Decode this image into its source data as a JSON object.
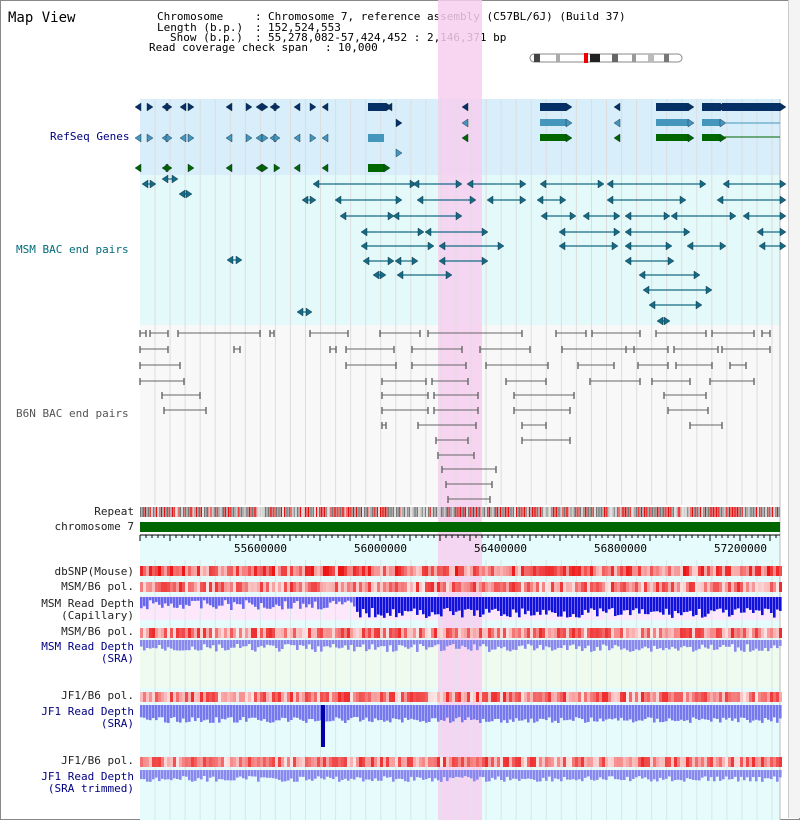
{
  "page_title": "Map View",
  "info": {
    "chromosome_key": "Chromosome",
    "chromosome_val": "Chromosome 7, reference assembly (C57BL/6J) (Build 37)",
    "length_key": "Length (b.p.)",
    "length_val": "152,524,553",
    "show_key": "Show (b.p.)",
    "show_val": "55,278,082-57,424,452 : 2,146,371 bp",
    "span_key": "Read coverage check span",
    "span_val": "10,000"
  },
  "tracks": {
    "refseq": "RefSeq Genes",
    "msm_bac": "MSM BAC end pairs",
    "b6n_bac": "B6N BAC end pairs",
    "repeat": "Repeat",
    "chromosome": "chromosome 7",
    "dbsnp": "dbSNP(Mouse)",
    "msm_b6_pol_1": "MSM/B6 pol.",
    "msm_depth_cap": "MSM Read Depth\n(Capillary)",
    "msm_b6_pol_2": "MSM/B6 pol.",
    "msm_depth_sra": "MSM Read Depth\n(SRA)",
    "jf1_b6_pol_1": "JF1/B6 pol.",
    "jf1_depth_sra": "JF1 Read Depth\n(SRA)",
    "jf1_b6_pol_2": "JF1/B6 pol.",
    "jf1_depth_trim": "JF1 Read Depth\n(SRA trimmed)"
  },
  "axis": {
    "ticks": [
      "55600000",
      "56000000",
      "56400000",
      "56800000",
      "57200000"
    ]
  },
  "colors": {
    "highlight": "#f7cff0",
    "refseq_bg": "#d8eefa",
    "msm_bg": "#e4fafa",
    "b6n_bg": "#f8f8f8",
    "gene_dark": "#062f66",
    "gene_mid": "#4596bd",
    "gene_green": "#006600",
    "msm_line": "#146b85",
    "b6n_line": "#666666",
    "chromosome_bar": "#006600",
    "snp_red": "#ee2222",
    "depth_blue": "#2222ee"
  }
}
